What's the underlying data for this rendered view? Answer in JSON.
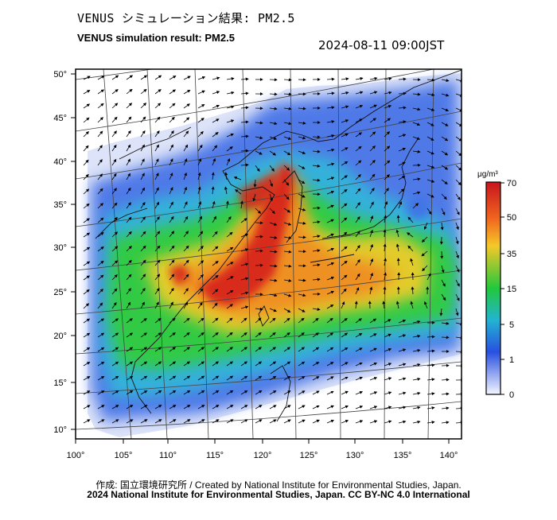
{
  "header": {
    "title_jp": "VENUS シミュレーション結果: PM2.5",
    "title_en": "VENUS simulation result: PM2.5",
    "timestamp": "2024-08-11 09:00JST"
  },
  "map": {
    "lon_ticks": [
      "100°",
      "105°",
      "110°",
      "115°",
      "120°",
      "125°",
      "130°",
      "135°",
      "140°"
    ],
    "lat_ticks": [
      "50°",
      "45°",
      "40°",
      "35°",
      "30°",
      "25°",
      "20°",
      "15°",
      "10°"
    ],
    "lon_values": [
      100,
      105,
      110,
      115,
      120,
      125,
      130,
      135,
      140
    ],
    "lat_values": [
      50,
      45,
      40,
      35,
      30,
      25,
      20,
      15,
      10
    ]
  },
  "colorbar": {
    "unit": "μg/m³",
    "labels": [
      "70",
      "50",
      "35",
      "15",
      "5",
      "1",
      "0"
    ],
    "colors": [
      "#d42a1e",
      "#f0841e",
      "#f5d02a",
      "#22c83c",
      "#2aa8e6",
      "#3a5ee6",
      "#dfe4fb"
    ]
  },
  "footer": {
    "credit": "作成: 国立環境研究所 / Created by National Institute for Environmental Studies, Japan.",
    "copyright": "2024 National Institute for Environmental Studies, Japan. CC BY-NC 4.0 International"
  }
}
